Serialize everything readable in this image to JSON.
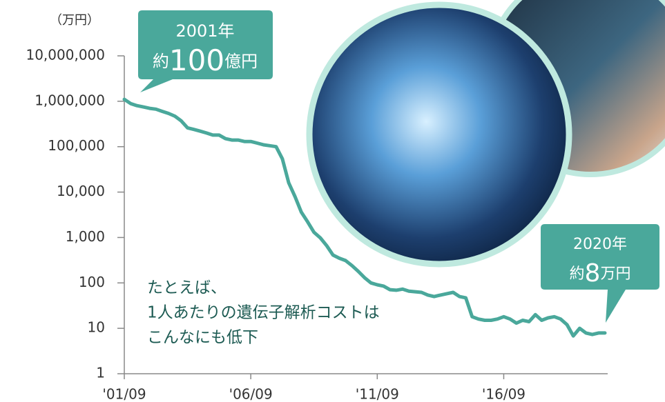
{
  "chart_data": {
    "type": "line",
    "unit_label": "（万円）",
    "categories": [
      "'01/09",
      null,
      null,
      null,
      null,
      null,
      null,
      null,
      null,
      null,
      null,
      null,
      null,
      null,
      null,
      null,
      null,
      null,
      null,
      null,
      "'06/09",
      null,
      null,
      null,
      null,
      null,
      null,
      null,
      null,
      null,
      null,
      null,
      null,
      null,
      null,
      null,
      null,
      null,
      null,
      null,
      "'11/09",
      null,
      null,
      null,
      null,
      null,
      null,
      null,
      null,
      null,
      null,
      null,
      null,
      null,
      null,
      null,
      null,
      null,
      null,
      null,
      "'16/09",
      null,
      null,
      null,
      null,
      null,
      null,
      null,
      null,
      null,
      null,
      null,
      null,
      null,
      null,
      null,
      null
    ],
    "series": [
      {
        "color": "#4aa89b",
        "values": [
          1100000,
          890000,
          800000,
          750000,
          700000,
          670000,
          600000,
          540000,
          470000,
          370000,
          260000,
          240000,
          220000,
          200000,
          180000,
          180000,
          150000,
          140000,
          140000,
          130000,
          130000,
          120000,
          110000,
          105000,
          100000,
          54000,
          16000,
          7900,
          3600,
          2200,
          1300,
          980,
          660,
          410,
          350,
          310,
          240,
          180,
          130,
          100,
          91,
          85,
          71,
          69,
          73,
          66,
          64,
          62,
          54,
          50,
          54,
          58,
          62,
          50,
          47,
          18,
          16,
          15,
          15,
          16,
          18,
          16,
          13,
          15,
          14,
          20,
          15,
          17,
          18,
          16,
          12,
          6.8,
          10,
          7.9,
          7.3,
          7.9,
          7.9
        ]
      }
    ],
    "log_scale": true,
    "ylim": [
      1,
      10000000
    ],
    "yticks": [
      1,
      10,
      100,
      {
        "value": 1000,
        "label": "1,000"
      },
      {
        "value": 10000,
        "label": "10,000"
      },
      {
        "value": 100000,
        "label": "100,000"
      },
      {
        "value": 1000000,
        "label": "1,000,000"
      },
      {
        "value": 10000000,
        "label": "10,000,000"
      }
    ],
    "callouts": [
      {
        "year": "2001年",
        "prefix": "約",
        "amount": "100",
        "suffix": "億円"
      },
      {
        "year": "2020年",
        "prefix": "約",
        "amount": "8",
        "suffix": "万円"
      }
    ],
    "annotation": [
      "たとえば、",
      "1人あたりの遺伝子解析コストは",
      "こんなにも低下"
    ]
  }
}
